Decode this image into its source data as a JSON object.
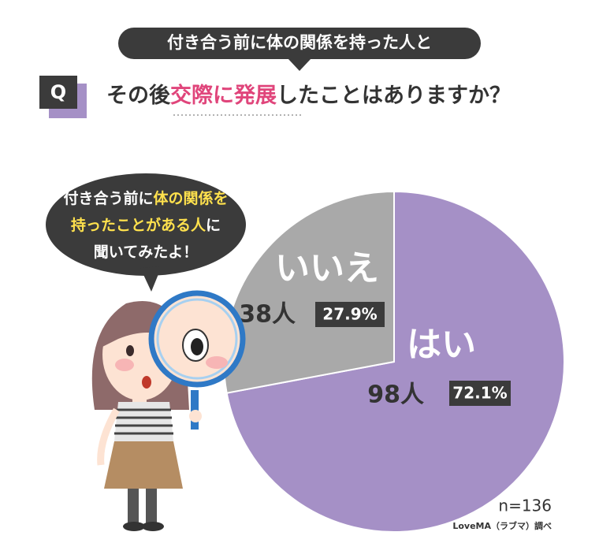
{
  "header": {
    "title": "付き合う前に体の関係を持った人と",
    "badge": "Q",
    "question": [
      {
        "text": "その後"
      },
      {
        "text": "交際に発展",
        "highlight": true
      },
      {
        "text": "したことはありますか？"
      }
    ]
  },
  "bubble": {
    "lines": [
      [
        {
          "text": "付き合う前に"
        },
        {
          "text": "体の関係を",
          "highlight": true
        }
      ],
      [
        {
          "text": "持ったことがある人",
          "highlight": true
        },
        {
          "text": "に"
        }
      ],
      [
        {
          "text": "聞いてみたよ！"
        }
      ]
    ]
  },
  "chart_data": {
    "type": "pie",
    "categories": [
      "はい",
      "いいえ"
    ],
    "values": [
      98,
      38
    ],
    "value_labels": [
      "98人",
      "38人"
    ],
    "percent_labels": [
      "72.1%",
      "27.9%"
    ],
    "colors": [
      "#a590c6",
      "#a9a9a9"
    ],
    "start_angle": 0,
    "direction": "clockwise",
    "sample": "n=136",
    "source": "LoveMA（ラブマ）調べ"
  }
}
